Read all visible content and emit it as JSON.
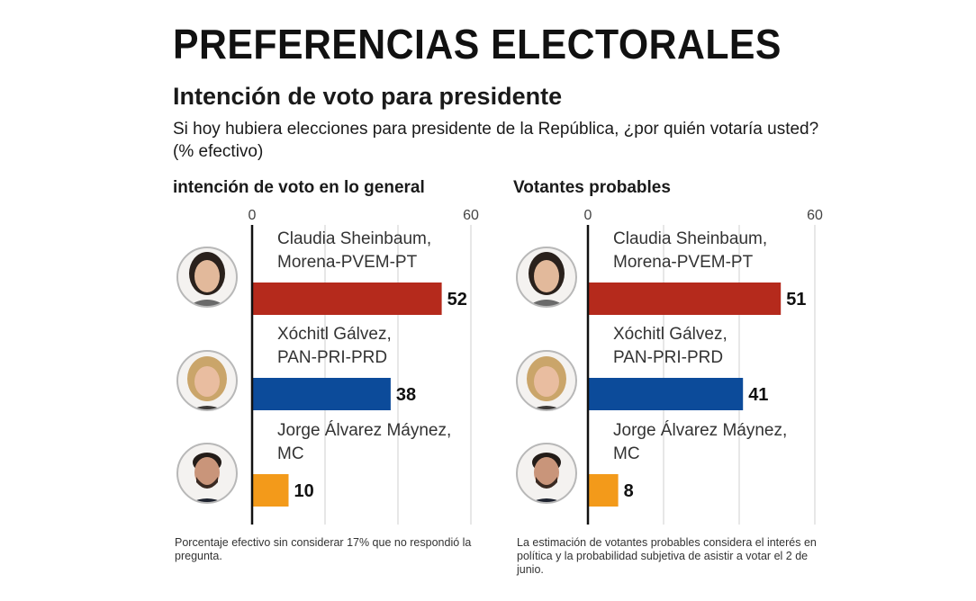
{
  "title": "PREFERENCIAS ELECTORALES",
  "subtitle": "Intención de voto para presidente",
  "question": "Si hoy hubiera elecciones para presidente de la República, ¿por quién votaría usted? (% efectivo)",
  "chart_data": [
    {
      "type": "bar",
      "orientation": "horizontal",
      "title": "intención de voto en lo general",
      "xlim": [
        0,
        60
      ],
      "ticks": [
        0,
        60
      ],
      "categories": [
        "Claudia Sheinbaum, Morena-PVEM-PT",
        "Xóchitl Gálvez, PAN-PRI-PRD",
        "Jorge Álvarez Máynez, MC"
      ],
      "label_lines": [
        [
          "Claudia Sheinbaum,",
          "Morena-PVEM-PT"
        ],
        [
          "Xóchitl Gálvez,",
          "PAN-PRI-PRD"
        ],
        [
          "Jorge Álvarez Máynez,",
          "MC"
        ]
      ],
      "values": [
        52,
        38,
        10
      ],
      "colors": [
        "#b52a1c",
        "#0c4b9a",
        "#f39a1a"
      ],
      "grid": true,
      "note": "Porcentaje efectivo sin considerar 17% que no respondió la pregunta."
    },
    {
      "type": "bar",
      "orientation": "horizontal",
      "title": "Votantes probables",
      "xlim": [
        0,
        60
      ],
      "ticks": [
        0,
        60
      ],
      "categories": [
        "Claudia Sheinbaum, Morena-PVEM-PT",
        "Xóchitl Gálvez, PAN-PRI-PRD",
        "Jorge Álvarez Máynez, MC"
      ],
      "label_lines": [
        [
          "Claudia Sheinbaum,",
          "Morena-PVEM-PT"
        ],
        [
          "Xóchitl Gálvez,",
          "PAN-PRI-PRD"
        ],
        [
          "Jorge Álvarez Máynez,",
          "MC"
        ]
      ],
      "values": [
        51,
        41,
        8
      ],
      "colors": [
        "#b52a1c",
        "#0c4b9a",
        "#f39a1a"
      ],
      "grid": true,
      "note": "La estimación de votantes probables considera el interés en política y la probabilidad subjetiva de asistir a votar el 2 de junio."
    }
  ],
  "avatars": [
    "sheinbaum-portrait",
    "galvez-portrait",
    "maynez-portrait"
  ]
}
